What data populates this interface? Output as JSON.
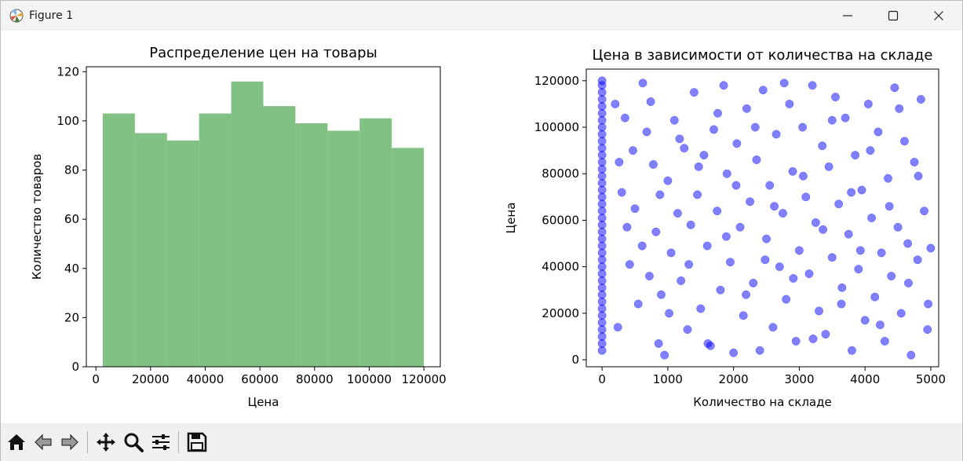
{
  "window": {
    "title": "Figure 1"
  },
  "toolbar": {
    "buttons": [
      "home-icon",
      "back-icon",
      "forward-icon",
      "pan-icon",
      "zoom-icon",
      "configure-subplots-icon",
      "save-icon"
    ]
  },
  "colors": {
    "hist_fill": "#81c184",
    "scatter_fill": "#0000ff"
  },
  "chart_data": [
    {
      "type": "bar",
      "title": "Распределение цен на товары",
      "xlabel": "Цена",
      "ylabel": "Количество товаров",
      "bin_edges": [
        2500,
        14250,
        26000,
        37750,
        49500,
        61250,
        73000,
        84750,
        96500,
        108250,
        120000
      ],
      "values": [
        103,
        95,
        92,
        103,
        116,
        106,
        99,
        96,
        101,
        89
      ],
      "xlim": [
        -3500,
        126000
      ],
      "ylim": [
        0,
        122
      ],
      "xticks": [
        0,
        20000,
        40000,
        60000,
        80000,
        100000,
        120000
      ],
      "yticks": [
        0,
        20,
        40,
        60,
        80,
        100,
        120
      ],
      "grid": false
    },
    {
      "type": "scatter",
      "title": "Цена в зависимости от количества на складе",
      "xlabel": "Количество на складе",
      "ylabel": "Цена",
      "xlim": [
        -240,
        5120
      ],
      "ylim": [
        -3000,
        125000
      ],
      "xticks": [
        0,
        1000,
        2000,
        3000,
        4000,
        5000
      ],
      "yticks": [
        0,
        20000,
        40000,
        60000,
        80000,
        100000,
        120000
      ],
      "grid": false,
      "points": [
        [
          0,
          4000
        ],
        [
          0,
          7000
        ],
        [
          0,
          10000
        ],
        [
          0,
          13000
        ],
        [
          0,
          16000
        ],
        [
          0,
          19000
        ],
        [
          0,
          22000
        ],
        [
          0,
          25000
        ],
        [
          0,
          28000
        ],
        [
          0,
          31000
        ],
        [
          0,
          34000
        ],
        [
          0,
          37000
        ],
        [
          0,
          40000
        ],
        [
          0,
          43000
        ],
        [
          0,
          46000
        ],
        [
          0,
          49000
        ],
        [
          0,
          52000
        ],
        [
          0,
          55000
        ],
        [
          0,
          58000
        ],
        [
          0,
          61000
        ],
        [
          0,
          64000
        ],
        [
          0,
          67000
        ],
        [
          0,
          70000
        ],
        [
          0,
          73000
        ],
        [
          0,
          76000
        ],
        [
          0,
          79000
        ],
        [
          0,
          82000
        ],
        [
          0,
          85000
        ],
        [
          0,
          88000
        ],
        [
          0,
          91000
        ],
        [
          0,
          94000
        ],
        [
          0,
          97000
        ],
        [
          0,
          100000
        ],
        [
          0,
          103000
        ],
        [
          0,
          106000
        ],
        [
          0,
          109000
        ],
        [
          0,
          112000
        ],
        [
          0,
          115000
        ],
        [
          0,
          118000
        ],
        [
          0,
          120000
        ],
        [
          200,
          110000
        ],
        [
          260,
          85000
        ],
        [
          300,
          72000
        ],
        [
          350,
          104000
        ],
        [
          420,
          41000
        ],
        [
          500,
          65000
        ],
        [
          550,
          24000
        ],
        [
          620,
          119000
        ],
        [
          680,
          98000
        ],
        [
          720,
          36000
        ],
        [
          780,
          84000
        ],
        [
          820,
          55000
        ],
        [
          860,
          7000
        ],
        [
          900,
          28000
        ],
        [
          950,
          2000
        ],
        [
          1000,
          77000
        ],
        [
          1050,
          46000
        ],
        [
          1100,
          103000
        ],
        [
          1150,
          63000
        ],
        [
          1200,
          34000
        ],
        [
          1250,
          91000
        ],
        [
          1300,
          13000
        ],
        [
          1350,
          58000
        ],
        [
          1400,
          115000
        ],
        [
          1450,
          71000
        ],
        [
          1500,
          22000
        ],
        [
          1550,
          88000
        ],
        [
          1600,
          49000
        ],
        [
          1650,
          6000
        ],
        [
          1700,
          99000
        ],
        [
          1750,
          64000
        ],
        [
          1800,
          30000
        ],
        [
          1850,
          118000
        ],
        [
          1900,
          80000
        ],
        [
          1950,
          42000
        ],
        [
          2000,
          3000
        ],
        [
          2050,
          93000
        ],
        [
          2100,
          57000
        ],
        [
          2150,
          19000
        ],
        [
          2200,
          108000
        ],
        [
          2250,
          68000
        ],
        [
          2300,
          33000
        ],
        [
          2350,
          86000
        ],
        [
          2400,
          4000
        ],
        [
          2450,
          116000
        ],
        [
          2500,
          52000
        ],
        [
          2550,
          75000
        ],
        [
          2600,
          14000
        ],
        [
          2650,
          97000
        ],
        [
          2700,
          40000
        ],
        [
          2750,
          63000
        ],
        [
          2800,
          26000
        ],
        [
          2850,
          110000
        ],
        [
          2900,
          81000
        ],
        [
          2950,
          8000
        ],
        [
          3000,
          47000
        ],
        [
          3050,
          100000
        ],
        [
          3100,
          70000
        ],
        [
          3150,
          37000
        ],
        [
          3200,
          118000
        ],
        [
          3250,
          59000
        ],
        [
          3300,
          21000
        ],
        [
          3350,
          92000
        ],
        [
          3400,
          11000
        ],
        [
          3450,
          83000
        ],
        [
          3500,
          44000
        ],
        [
          3550,
          113000
        ],
        [
          3600,
          67000
        ],
        [
          3650,
          31000
        ],
        [
          3700,
          104000
        ],
        [
          3750,
          54000
        ],
        [
          3800,
          4000
        ],
        [
          3850,
          88000
        ],
        [
          3900,
          39000
        ],
        [
          3950,
          73000
        ],
        [
          4000,
          17000
        ],
        [
          4050,
          110000
        ],
        [
          4100,
          61000
        ],
        [
          4150,
          27000
        ],
        [
          4200,
          98000
        ],
        [
          4250,
          46000
        ],
        [
          4300,
          8000
        ],
        [
          4350,
          78000
        ],
        [
          4400,
          36000
        ],
        [
          4450,
          117000
        ],
        [
          4500,
          57000
        ],
        [
          4550,
          20000
        ],
        [
          4600,
          94000
        ],
        [
          4650,
          50000
        ],
        [
          4700,
          2000
        ],
        [
          4750,
          85000
        ],
        [
          4800,
          43000
        ],
        [
          4850,
          112000
        ],
        [
          4900,
          64000
        ],
        [
          4950,
          13000
        ],
        [
          5000,
          48000
        ],
        [
          240,
          14000
        ],
        [
          380,
          57000
        ],
        [
          470,
          90000
        ],
        [
          610,
          49000
        ],
        [
          740,
          111000
        ],
        [
          880,
          71000
        ],
        [
          1020,
          20000
        ],
        [
          1180,
          95000
        ],
        [
          1320,
          41000
        ],
        [
          1470,
          83000
        ],
        [
          1610,
          7000
        ],
        [
          1760,
          106000
        ],
        [
          1890,
          53000
        ],
        [
          2040,
          75000
        ],
        [
          2190,
          28000
        ],
        [
          2330,
          100000
        ],
        [
          2480,
          43000
        ],
        [
          2620,
          66000
        ],
        [
          2770,
          119000
        ],
        [
          2910,
          35000
        ],
        [
          3060,
          79000
        ],
        [
          3210,
          9000
        ],
        [
          3360,
          56000
        ],
        [
          3500,
          103000
        ],
        [
          3640,
          24000
        ],
        [
          3790,
          72000
        ],
        [
          3930,
          47000
        ],
        [
          4080,
          90000
        ],
        [
          4230,
          15000
        ],
        [
          4370,
          66000
        ],
        [
          4520,
          108000
        ],
        [
          4660,
          33000
        ],
        [
          4810,
          79000
        ],
        [
          4960,
          24000
        ]
      ]
    }
  ]
}
